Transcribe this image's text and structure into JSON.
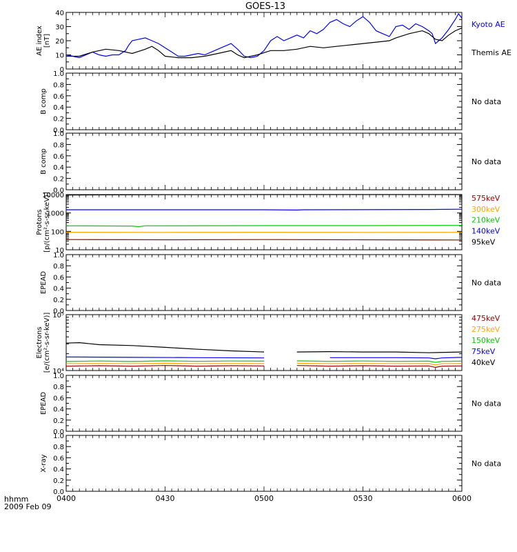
{
  "title": "GOES-13",
  "time_axis": {
    "unit_label": "hhmm",
    "date_label": "2009 Feb 09",
    "ticks": [
      "0400",
      "0430",
      "0500",
      "0530",
      "0600"
    ],
    "range_minutes": [
      0,
      120
    ]
  },
  "no_data_text": "No data",
  "colors": {
    "black": "#000000",
    "blue": "#0000ff",
    "green": "#00cc00",
    "orange": "#ffa500",
    "darkred": "#a00000"
  },
  "chart_data": [
    {
      "id": "ae",
      "type": "line",
      "ylabel": [
        "AE index",
        "[nT]"
      ],
      "ylim": [
        0,
        40
      ],
      "yscale": "linear",
      "yticks": [
        "0",
        "10",
        "20",
        "30",
        "40"
      ],
      "x_unit": "minutes after 0400 UT",
      "series": [
        {
          "name": "Kyoto AE",
          "color": "#0000ff",
          "points": [
            [
              0,
              10
            ],
            [
              2,
              9
            ],
            [
              4,
              8
            ],
            [
              6,
              10
            ],
            [
              8,
              12
            ],
            [
              10,
              10
            ],
            [
              12,
              9
            ],
            [
              14,
              10
            ],
            [
              16,
              10
            ],
            [
              18,
              13
            ],
            [
              19,
              17
            ],
            [
              20,
              20
            ],
            [
              22,
              21
            ],
            [
              24,
              22
            ],
            [
              26,
              20
            ],
            [
              28,
              18
            ],
            [
              30,
              15
            ],
            [
              32,
              12
            ],
            [
              34,
              9
            ],
            [
              36,
              9
            ],
            [
              38,
              10
            ],
            [
              40,
              11
            ],
            [
              42,
              10
            ],
            [
              44,
              12
            ],
            [
              46,
              14
            ],
            [
              48,
              16
            ],
            [
              50,
              18
            ],
            [
              52,
              14
            ],
            [
              54,
              9
            ],
            [
              56,
              8
            ],
            [
              58,
              9
            ],
            [
              60,
              13
            ],
            [
              62,
              20
            ],
            [
              64,
              23
            ],
            [
              66,
              20
            ],
            [
              68,
              22
            ],
            [
              70,
              24
            ],
            [
              72,
              22
            ],
            [
              74,
              27
            ],
            [
              76,
              25
            ],
            [
              78,
              28
            ],
            [
              80,
              33
            ],
            [
              82,
              35
            ],
            [
              84,
              32
            ],
            [
              86,
              30
            ],
            [
              88,
              34
            ],
            [
              90,
              37
            ],
            [
              92,
              33
            ],
            [
              94,
              27
            ],
            [
              96,
              25
            ],
            [
              98,
              23
            ],
            [
              100,
              30
            ],
            [
              102,
              31
            ],
            [
              104,
              28
            ],
            [
              106,
              32
            ],
            [
              108,
              30
            ],
            [
              110,
              27
            ],
            [
              111,
              25
            ],
            [
              112,
              18
            ],
            [
              114,
              22
            ],
            [
              116,
              28
            ],
            [
              118,
              35
            ],
            [
              119,
              39
            ],
            [
              120,
              36
            ]
          ]
        },
        {
          "name": "Themis AE",
          "color": "#000000",
          "points": [
            [
              0,
              9
            ],
            [
              4,
              9
            ],
            [
              8,
              12
            ],
            [
              12,
              14
            ],
            [
              16,
              13
            ],
            [
              20,
              11
            ],
            [
              24,
              14
            ],
            [
              26,
              16
            ],
            [
              28,
              13
            ],
            [
              30,
              9
            ],
            [
              34,
              8
            ],
            [
              38,
              8
            ],
            [
              42,
              9
            ],
            [
              46,
              11
            ],
            [
              50,
              13
            ],
            [
              52,
              10
            ],
            [
              54,
              8
            ],
            [
              58,
              10
            ],
            [
              62,
              13
            ],
            [
              66,
              13
            ],
            [
              70,
              14
            ],
            [
              74,
              16
            ],
            [
              78,
              15
            ],
            [
              82,
              16
            ],
            [
              86,
              17
            ],
            [
              90,
              18
            ],
            [
              94,
              19
            ],
            [
              98,
              20
            ],
            [
              100,
              22
            ],
            [
              104,
              25
            ],
            [
              108,
              27
            ],
            [
              110,
              25
            ],
            [
              112,
              21
            ],
            [
              114,
              20
            ],
            [
              116,
              24
            ],
            [
              118,
              27
            ],
            [
              120,
              29
            ]
          ]
        }
      ]
    },
    {
      "id": "bcomp1",
      "type": "line",
      "ylabel": [
        "B comp"
      ],
      "ylim": [
        0,
        1
      ],
      "yscale": "linear",
      "yticks": [
        "0.0",
        "0.2",
        "0.4",
        "0.6",
        "0.8",
        "1.0"
      ],
      "no_data": true,
      "series": []
    },
    {
      "id": "bcomp2",
      "type": "line",
      "ylabel": [
        "B comp"
      ],
      "ylim": [
        0,
        1
      ],
      "yscale": "linear",
      "yticks": [
        "0.0",
        "0.2",
        "0.4",
        "0.6",
        "0.8",
        "1.0"
      ],
      "no_data": true,
      "series": []
    },
    {
      "id": "protons",
      "type": "line",
      "ylabel": [
        "Protons",
        "[p/(cm²-s-sr-keV)]"
      ],
      "ylim": [
        10,
        10000
      ],
      "yscale": "log",
      "yticks": [
        "10",
        "100",
        "1000",
        "10000"
      ],
      "x_unit": "minutes after 0400 UT",
      "series": [
        {
          "name": "575keV",
          "color": "#a00000",
          "points": [
            [
              0,
              36
            ],
            [
              30,
              35
            ],
            [
              60,
              36
            ],
            [
              90,
              35
            ],
            [
              120,
              34
            ]
          ]
        },
        {
          "name": "300keV",
          "color": "#ffa500",
          "points": [
            [
              0,
              90
            ],
            [
              30,
              88
            ],
            [
              60,
              90
            ],
            [
              90,
              88
            ],
            [
              120,
              89
            ]
          ]
        },
        {
          "name": "210keV",
          "color": "#00cc00",
          "points": [
            [
              0,
              200
            ],
            [
              20,
              195
            ],
            [
              22,
              180
            ],
            [
              24,
              200
            ],
            [
              60,
              205
            ],
            [
              90,
              205
            ],
            [
              120,
              210
            ]
          ]
        },
        {
          "name": "140keV",
          "color": "#0000ff",
          "points": [
            [
              0,
              1500
            ],
            [
              30,
              1500
            ],
            [
              60,
              1500
            ],
            [
              70,
              1450
            ],
            [
              72,
              1500
            ],
            [
              110,
              1550
            ],
            [
              120,
              1600
            ]
          ]
        },
        {
          "name": "95keV",
          "color": "#000000",
          "points": [
            [
              0,
              9500
            ],
            [
              30,
              9800
            ],
            [
              60,
              10000
            ],
            [
              90,
              10000
            ],
            [
              120,
              10000
            ]
          ]
        }
      ]
    },
    {
      "id": "epead1",
      "type": "line",
      "ylabel": [
        "EPEAD"
      ],
      "ylim": [
        0,
        1
      ],
      "yscale": "linear",
      "yticks": [
        "0.0",
        "0.2",
        "0.4",
        "0.6",
        "0.8",
        "1.0"
      ],
      "no_data": true,
      "series": []
    },
    {
      "id": "electrons",
      "type": "line",
      "ylabel": [
        "Electrons",
        "[e/(cm²-s-sr-keV)]"
      ],
      "ylim": [
        10000,
        100000
      ],
      "yscale": "log",
      "yticks": [
        "10⁴",
        "10⁵"
      ],
      "x_unit": "minutes after 0400 UT",
      "gap_minutes": [
        64,
        65
      ],
      "series": [
        {
          "name": "475keV",
          "color": "#a00000",
          "points": [
            [
              0,
              12000
            ],
            [
              10,
              12200
            ],
            [
              20,
              12000
            ],
            [
              30,
              12300
            ],
            [
              40,
              12000
            ],
            [
              50,
              12200
            ],
            [
              60,
              12100
            ],
            [
              70,
              12300
            ],
            [
              80,
              12000
            ],
            [
              90,
              12200
            ],
            [
              100,
              12000
            ],
            [
              110,
              12100
            ],
            [
              112,
              11400
            ],
            [
              114,
              12000
            ],
            [
              120,
              12100
            ]
          ]
        },
        {
          "name": "275keV",
          "color": "#ffa500",
          "points": [
            [
              0,
              13200
            ],
            [
              10,
              13400
            ],
            [
              20,
              13200
            ],
            [
              30,
              13500
            ],
            [
              40,
              13200
            ],
            [
              50,
              13400
            ],
            [
              60,
              13300
            ],
            [
              70,
              13500
            ],
            [
              80,
              13200
            ],
            [
              90,
              13400
            ],
            [
              100,
              13200
            ],
            [
              110,
              13300
            ],
            [
              112,
              12600
            ],
            [
              114,
              13200
            ],
            [
              120,
              13300
            ]
          ]
        },
        {
          "name": "150keV",
          "color": "#00cc00",
          "points": [
            [
              0,
              14500
            ],
            [
              10,
              14800
            ],
            [
              20,
              14500
            ],
            [
              30,
              14900
            ],
            [
              40,
              14600
            ],
            [
              50,
              14800
            ],
            [
              60,
              14700
            ],
            [
              70,
              14900
            ],
            [
              80,
              14600
            ],
            [
              90,
              14800
            ],
            [
              100,
              14600
            ],
            [
              110,
              14700
            ],
            [
              112,
              14000
            ],
            [
              114,
              14600
            ],
            [
              120,
              14700
            ]
          ]
        },
        {
          "name": "75keV",
          "color": "#0000ff",
          "points": [
            [
              0,
              17500
            ],
            [
              20,
              17200
            ],
            [
              40,
              17000
            ],
            [
              60,
              16800
            ],
            [
              80,
              17000
            ],
            [
              100,
              17000
            ],
            [
              110,
              16800
            ],
            [
              112,
              16200
            ],
            [
              114,
              16800
            ],
            [
              120,
              17200
            ]
          ]
        },
        {
          "name": "40keV",
          "color": "#000000",
          "points": [
            [
              0,
              31000
            ],
            [
              4,
              31500
            ],
            [
              10,
              29000
            ],
            [
              20,
              28000
            ],
            [
              30,
              26000
            ],
            [
              40,
              24000
            ],
            [
              50,
              22500
            ],
            [
              60,
              21500
            ],
            [
              70,
              21500
            ],
            [
              80,
              21800
            ],
            [
              90,
              21500
            ],
            [
              100,
              21500
            ],
            [
              110,
              20800
            ],
            [
              120,
              21500
            ]
          ]
        }
      ]
    },
    {
      "id": "epead2",
      "type": "line",
      "ylabel": [
        "EPEAD"
      ],
      "ylim": [
        0,
        1
      ],
      "yscale": "linear",
      "yticks": [
        "0.0",
        "0.2",
        "0.4",
        "0.6",
        "0.8",
        "1.0"
      ],
      "no_data": true,
      "series": []
    },
    {
      "id": "xray",
      "type": "line",
      "ylabel": [
        "X-ray"
      ],
      "ylim": [
        0,
        1
      ],
      "yscale": "linear",
      "yticks": [
        "0.0",
        "0.2",
        "0.4",
        "0.6",
        "0.8",
        "1.0"
      ],
      "no_data": true,
      "series": []
    }
  ]
}
